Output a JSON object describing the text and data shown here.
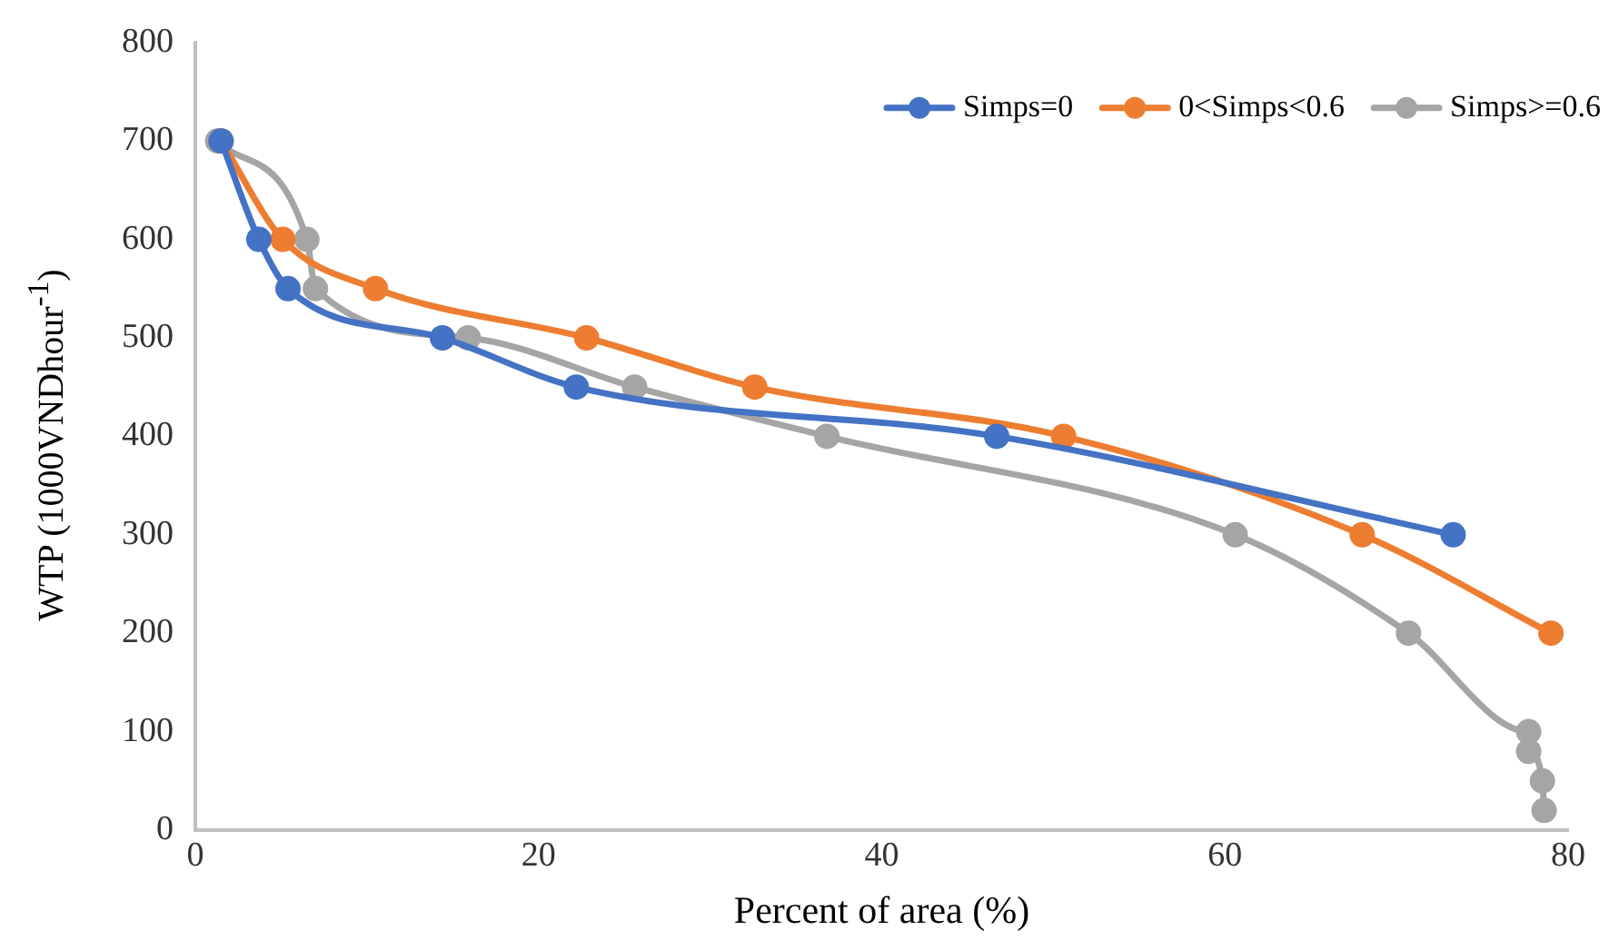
{
  "chart_data": {
    "type": "line",
    "xlabel": "Percent of area (%)",
    "ylabel": "WTP (1000VNDhour$^{-1}$)",
    "xlim": [
      0,
      80
    ],
    "xticks": [
      0,
      20,
      40,
      60,
      80
    ],
    "ylim": [
      0,
      800
    ],
    "yticks": [
      0,
      100,
      200,
      300,
      400,
      500,
      600,
      700,
      800
    ],
    "grid": false,
    "legend": "top right",
    "marker": "circle",
    "line_style": "solid",
    "series": [
      {
        "name": "Simps=0",
        "color": "#4472c4",
        "x": [
          1.5,
          3.7,
          5.4,
          14.4,
          22.2,
          46.7,
          73.3
        ],
        "values": [
          700,
          600,
          550,
          500,
          450,
          400,
          300
        ]
      },
      {
        "name": "0<Simps<0.6",
        "color": "#ed7d31",
        "x": [
          1.5,
          5.1,
          10.5,
          22.8,
          32.6,
          50.6,
          68.0,
          79.0
        ],
        "values": [
          700,
          600,
          550,
          500,
          450,
          400,
          300,
          200
        ]
      },
      {
        "name": "Simps>=0.6",
        "color": "#a5a5a5",
        "x": [
          1.3,
          6.5,
          7.0,
          15.9,
          25.6,
          36.8,
          60.6,
          70.7,
          77.7,
          77.7,
          78.5,
          78.6
        ],
        "values": [
          700,
          600,
          550,
          500,
          450,
          400,
          300,
          200,
          100,
          80,
          50,
          20
        ]
      }
    ]
  }
}
